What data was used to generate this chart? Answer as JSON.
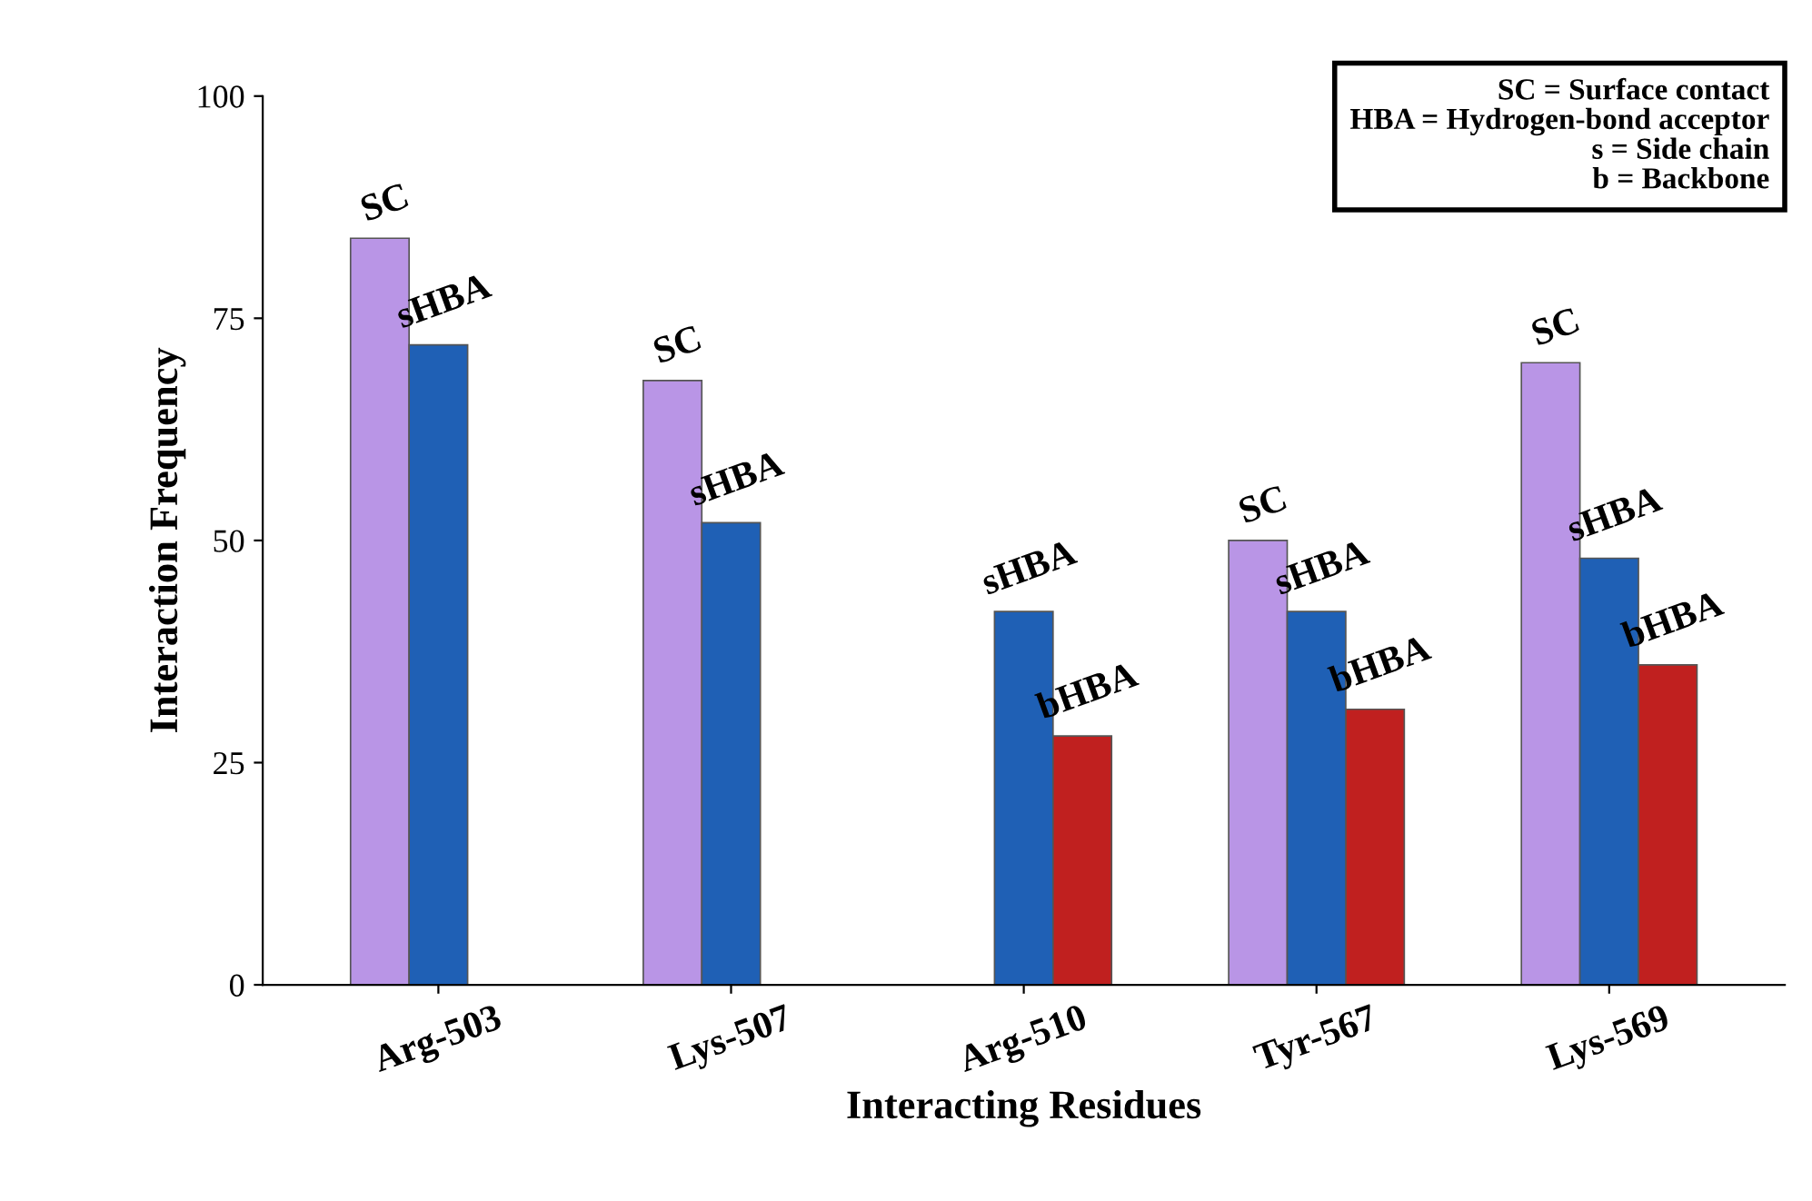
{
  "chart_data": {
    "type": "bar",
    "xlabel": "Interacting Residues",
    "ylabel": "Interaction Frequency",
    "categories": [
      "Arg-503",
      "Lys-507",
      "Arg-510",
      "Tyr-567",
      "Lys-569"
    ],
    "series": [
      {
        "name": "SC",
        "color": "#b995e6",
        "values": [
          84,
          68,
          null,
          50,
          70
        ]
      },
      {
        "name": "sHBA",
        "color": "#1f60b5",
        "values": [
          72,
          52,
          42,
          42,
          48
        ]
      },
      {
        "name": "bHBA",
        "color": "#c0201f",
        "values": [
          null,
          null,
          28,
          31,
          36
        ]
      }
    ],
    "ylim": [
      0,
      100
    ],
    "yticks": [
      0,
      25,
      50,
      75,
      100
    ],
    "grid": false,
    "legend": false,
    "annotations": [
      "SC = Surface contact",
      "HBA = Hydrogen-bond acceptor",
      "s = Side chain",
      "b = Backbone"
    ]
  }
}
